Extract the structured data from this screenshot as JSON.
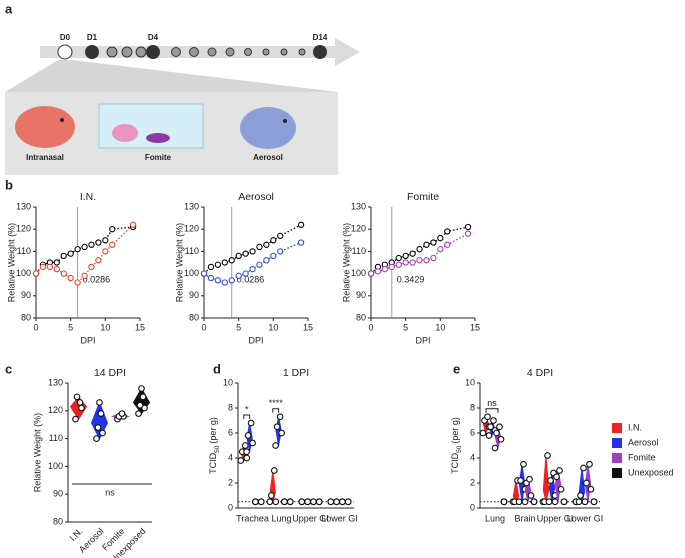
{
  "panel_labels": [
    "a",
    "b",
    "c",
    "d",
    "e"
  ],
  "timeline": [
    "D0",
    "D1",
    "D4",
    "D14"
  ],
  "routes": [
    "Intranasal",
    "Fomite",
    "Aerosol"
  ],
  "chart_data": [
    {
      "type": "line",
      "title": "I.N.",
      "xlabel": "DPI",
      "ylabel": "Relative Weight (%)",
      "x": [
        0,
        1,
        2,
        3,
        4,
        5,
        6,
        7,
        8,
        9,
        10,
        11,
        14
      ],
      "xlim": [
        0,
        15
      ],
      "xticks": [
        0,
        5,
        10,
        15
      ],
      "ylim": [
        80,
        130
      ],
      "yticks": [
        80,
        90,
        100,
        110,
        120,
        130
      ],
      "vline": 6,
      "annotation": "0.0286",
      "series": [
        {
          "color": "#000000",
          "values": [
            100,
            104,
            105,
            105,
            108,
            109,
            111,
            112,
            113,
            114,
            115,
            120,
            121
          ]
        },
        {
          "color": "#e8412c",
          "values": [
            100,
            103,
            103,
            102,
            100,
            98,
            96,
            99,
            103,
            106,
            110,
            113,
            122
          ]
        }
      ]
    },
    {
      "type": "line",
      "title": "Aerosol",
      "xlabel": "DPI",
      "ylabel": "Relative Weight (%)",
      "x": [
        0,
        1,
        2,
        3,
        4,
        5,
        6,
        7,
        8,
        9,
        10,
        11,
        14
      ],
      "xlim": [
        0,
        15
      ],
      "xticks": [
        0,
        5,
        10,
        15
      ],
      "ylim": [
        80,
        130
      ],
      "yticks": [
        80,
        90,
        100,
        110,
        120,
        130
      ],
      "vline": 4,
      "annotation": "0.0286",
      "series": [
        {
          "color": "#000000",
          "values": [
            100,
            103,
            104,
            105,
            106,
            108,
            109,
            110,
            112,
            113,
            115,
            117,
            122
          ]
        },
        {
          "color": "#2f4fd8",
          "values": [
            100,
            98,
            97,
            96,
            97,
            99,
            100,
            102,
            104,
            106,
            108,
            110,
            114
          ]
        }
      ]
    },
    {
      "type": "line",
      "title": "Fomite",
      "xlabel": "DPI",
      "ylabel": "Relative Weight (%)",
      "x": [
        0,
        1,
        2,
        3,
        4,
        5,
        6,
        7,
        8,
        9,
        10,
        11,
        14
      ],
      "xlim": [
        0,
        15
      ],
      "xticks": [
        0,
        5,
        10,
        15
      ],
      "ylim": [
        80,
        130
      ],
      "yticks": [
        80,
        90,
        100,
        110,
        120,
        130
      ],
      "vline": 3,
      "annotation": "0.3429",
      "series": [
        {
          "color": "#000000",
          "values": [
            100,
            103,
            104,
            105,
            107,
            108,
            109,
            111,
            113,
            114,
            116,
            119,
            121
          ]
        },
        {
          "color": "#a040b0",
          "values": [
            100,
            101,
            102,
            103,
            104,
            105,
            105,
            106,
            106,
            107,
            111,
            113,
            118
          ]
        }
      ]
    },
    {
      "type": "violin",
      "title": "14 DPI",
      "ylabel": "Relative Weight (%)",
      "categories": [
        "I.N.",
        "Aerosol",
        "Fomite",
        "Unexposed"
      ],
      "colors": [
        "#ee2222",
        "#2233ee",
        "#a040c0",
        "#111111"
      ],
      "values": [
        [
          117,
          121,
          125,
          123
        ],
        [
          110,
          112,
          114,
          119,
          123
        ],
        [
          117,
          118,
          118,
          119
        ],
        [
          119,
          121,
          122,
          125,
          128
        ]
      ],
      "ylim": [
        80,
        130
      ],
      "yticks": [
        80,
        90,
        100,
        110,
        120,
        130
      ],
      "annotation": "ns"
    },
    {
      "type": "grouped_violin",
      "title": "1 DPI",
      "ylabel": "TCID",
      "ylabel_sub": "50",
      "ylabel_unit": "(per g)",
      "categories": [
        "Trachea",
        "Lung",
        "Upper GI",
        "Lower GI"
      ],
      "ylim": [
        0,
        10
      ],
      "yticks": [
        0,
        2,
        4,
        6,
        8,
        10
      ],
      "limit": 0.5,
      "annotations": [
        "*",
        "****",
        null,
        null
      ],
      "series": [
        {
          "color": "#ee2222",
          "values": [
            [
              3.8,
              4.0,
              4.5,
              5.0
            ],
            [
              0.5,
              0.5,
              1.0,
              3.0
            ],
            [
              0.5,
              0.5,
              0.5,
              0.5
            ],
            [
              0.5,
              0.5,
              0.5,
              0.5
            ]
          ]
        },
        {
          "color": "#2233ee",
          "values": [
            [
              4.5,
              5.2,
              5.8,
              6.8
            ],
            [
              5.0,
              6.0,
              6.5,
              7.3
            ],
            [
              0.5,
              0.5,
              0.5,
              0.5
            ],
            [
              0.5,
              0.5,
              0.5,
              0.5
            ]
          ]
        },
        {
          "color": "#a040c0",
          "values": [
            [
              0.5,
              0.5,
              0.5,
              0.5
            ],
            [
              0.5,
              0.5,
              0.5,
              0.5
            ],
            [
              0.5,
              0.5,
              0.5,
              0.5
            ],
            [
              0.5,
              0.5,
              0.5,
              0.5
            ]
          ]
        },
        {
          "color": "#111111",
          "values": [
            [
              0.5,
              0.5,
              0.5,
              0.5
            ],
            [
              0.5,
              0.5,
              0.5,
              0.5
            ],
            [
              0.5,
              0.5,
              0.5,
              0.5
            ],
            [
              0.5,
              0.5,
              0.5,
              0.5
            ]
          ]
        }
      ]
    },
    {
      "type": "grouped_violin",
      "title": "4 DPI",
      "ylabel": "TCID",
      "ylabel_sub": "50",
      "ylabel_unit": "(per g)",
      "categories": [
        "Lung",
        "Brain",
        "Upper GI",
        "Lower GI"
      ],
      "ylim": [
        0,
        10
      ],
      "yticks": [
        0,
        2,
        4,
        6,
        8,
        10
      ],
      "limit": 0.5,
      "annotations": [
        "ns",
        null,
        null,
        null
      ],
      "series": [
        {
          "name": "I.N.",
          "color": "#ee2222",
          "values": [
            [
              6.0,
              6.5,
              7.0,
              7.3
            ],
            [
              0.5,
              0.5,
              0.5,
              2.2
            ],
            [
              0.5,
              0.5,
              0.5,
              4.2
            ],
            [
              0.5,
              0.5,
              0.5,
              0.5
            ]
          ]
        },
        {
          "name": "Aerosol",
          "color": "#2233ee",
          "values": [
            [
              5.8,
              6.2,
              6.5,
              7.0
            ],
            [
              0.5,
              1.5,
              2.2,
              3.5
            ],
            [
              0.5,
              1.0,
              2.2,
              2.8
            ],
            [
              0.5,
              0.5,
              1.0,
              3.2
            ]
          ]
        },
        {
          "name": "Fomite",
          "color": "#a040c0",
          "values": [
            [
              4.8,
              5.5,
              6.0,
              6.5
            ],
            [
              0.5,
              1.0,
              2.0,
              2.3
            ],
            [
              0.5,
              1.5,
              2.5,
              3.0
            ],
            [
              0.5,
              1.5,
              2.0,
              3.5
            ]
          ]
        },
        {
          "name": "Unexposed",
          "color": "#111111",
          "values": [
            [
              0.5,
              0.5,
              0.5,
              0.5
            ],
            [
              0.5,
              0.5,
              0.5,
              0.5
            ],
            [
              0.5,
              0.5,
              0.5,
              0.5
            ],
            [
              0.5,
              0.5,
              0.5,
              0.5
            ]
          ]
        }
      ]
    }
  ]
}
